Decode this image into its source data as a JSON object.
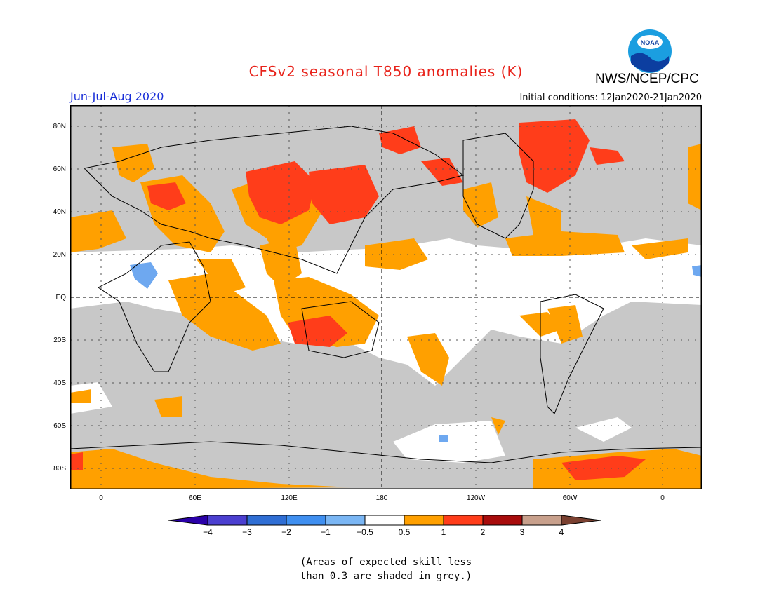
{
  "header": {
    "title": "CFSv2 seasonal T850 anomalies (K)",
    "agency": "NWS/NCEP/CPC",
    "season": "Jun-Jul-Aug 2020",
    "initial_conditions": "Initial conditions: 12Jan2020-21Jan2020",
    "logo_text": "NOAA"
  },
  "map": {
    "lat_labels": [
      "80N",
      "60N",
      "40N",
      "20N",
      "EQ",
      "20S",
      "40S",
      "60S",
      "80S"
    ],
    "lon_labels": [
      "0",
      "60E",
      "120E",
      "180",
      "120W",
      "60W",
      "0"
    ],
    "colors": {
      "skill_grey": "#c8c8c8",
      "orange": "#ffa000",
      "red": "#ff3d1a",
      "light_blue": "#6ea8f0",
      "blue": "#4a90e8"
    }
  },
  "colorbar": {
    "labels": [
      "−4",
      "−3",
      "−2",
      "−1",
      "−0.5",
      "0.5",
      "1",
      "2",
      "3",
      "4"
    ],
    "colors": [
      "#2a00a8",
      "#4b3fd0",
      "#2f6ed4",
      "#3f8ff0",
      "#7ab6f4",
      "#ffffff",
      "#ffa000",
      "#ff3d1a",
      "#a80c0c",
      "#c8a08c",
      "#7a4030"
    ]
  },
  "note": {
    "line1": "(Areas of expected skill less",
    "line2": "than 0.3 are shaded in grey.)"
  }
}
